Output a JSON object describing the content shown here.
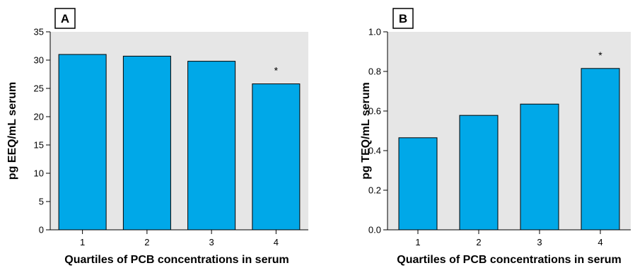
{
  "chart_data": [
    {
      "type": "bar",
      "panel_label": "A",
      "categories": [
        "1",
        "2",
        "3",
        "4"
      ],
      "values": [
        31.0,
        30.7,
        29.8,
        25.8
      ],
      "significance": [
        "",
        "",
        "",
        "*"
      ],
      "xlabel": "Quartiles of PCB concentrations in serum",
      "ylabel": "pg EEQ/mL serum",
      "ylim": [
        0,
        35
      ],
      "yticks": [
        0,
        5,
        10,
        15,
        20,
        25,
        30,
        35
      ],
      "ytick_labels": [
        "0",
        "5",
        "10",
        "15",
        "20",
        "25",
        "30",
        "35"
      ],
      "bar_color": "#00a8e8",
      "plot_bg": "#e6e6e6",
      "grid": false
    },
    {
      "type": "bar",
      "panel_label": "B",
      "categories": [
        "1",
        "2",
        "3",
        "4"
      ],
      "values": [
        0.465,
        0.578,
        0.635,
        0.815
      ],
      "significance": [
        "",
        "",
        "",
        "*"
      ],
      "xlabel": "Quartiles of PCB concentrations in serum",
      "ylabel": "pg TEQ/mL serum",
      "ylim": [
        0,
        1.0
      ],
      "yticks": [
        0,
        0.2,
        0.4,
        0.6,
        0.8,
        1.0
      ],
      "ytick_labels": [
        "0.0",
        "0.2",
        "0.4",
        "0.6",
        "0.8",
        "1.0"
      ],
      "bar_color": "#00a8e8",
      "plot_bg": "#e6e6e6",
      "grid": false
    }
  ]
}
